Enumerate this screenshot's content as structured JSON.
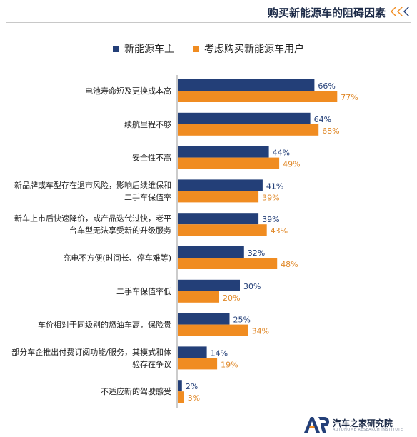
{
  "title": "购买新能源车的阻碍因素",
  "legend": {
    "series_a": "新能源车主",
    "series_b": "考虑购买新能源车用户"
  },
  "colors": {
    "series_a": "#233f78",
    "series_b": "#f08c21",
    "title": "#1f2d4a"
  },
  "icons": {
    "title_decoration": "triple-chevron-left-icon",
    "logo": "ar-logo-icon"
  },
  "logo": {
    "name": "汽车之家研究院",
    "sub": "AUTOHOME RESEARCH INSTITUTE"
  },
  "chart_data": {
    "type": "bar",
    "orientation": "horizontal",
    "title": "购买新能源车的阻碍因素",
    "categories": [
      [
        "电池寿命短及更换成本高"
      ],
      [
        "续航里程不够"
      ],
      [
        "安全性不高"
      ],
      [
        "新品牌或车型存在退市风险，影响后续维保和",
        "二手车保值率"
      ],
      [
        "新车上市后快速降价，或产品迭代过快，老平",
        "台车型无法享受新的升级服务"
      ],
      [
        "充电不方便(时间长、停车难等)"
      ],
      [
        "二手车保值率低"
      ],
      [
        "车价相对于同级别的燃油车高，保险贵"
      ],
      [
        "部分车企推出付费订阅功能/服务，其模式和体",
        "验存在争议"
      ],
      [
        "不适应新的驾驶感受"
      ]
    ],
    "series": [
      {
        "name": "新能源车主",
        "values": [
          66,
          64,
          44,
          41,
          39,
          32,
          30,
          25,
          14,
          2
        ]
      },
      {
        "name": "考虑购买新能源车用户",
        "values": [
          77,
          68,
          49,
          39,
          43,
          48,
          20,
          34,
          19,
          3
        ]
      }
    ],
    "value_suffix": "%",
    "legend_position": "top",
    "grid": false,
    "xlim": [
      0,
      100
    ]
  }
}
